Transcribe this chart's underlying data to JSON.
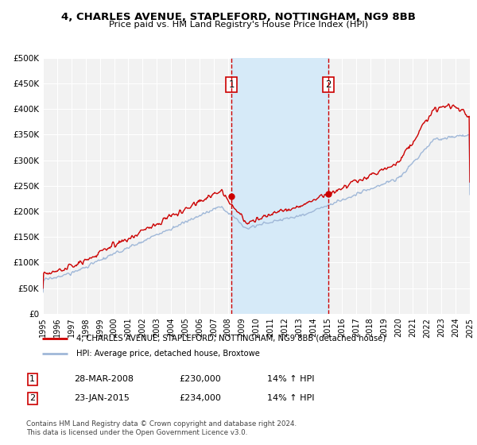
{
  "title_line1": "4, CHARLES AVENUE, STAPLEFORD, NOTTINGHAM, NG9 8BB",
  "title_line2": "Price paid vs. HM Land Registry's House Price Index (HPI)",
  "background_color": "#ffffff",
  "plot_background_color": "#f2f2f2",
  "grid_color": "#ffffff",
  "hpi_color": "#a0b8d8",
  "price_color": "#cc0000",
  "highlight_fill": "#d6eaf8",
  "marker_color": "#cc0000",
  "vline_color": "#cc0000",
  "ylim": [
    0,
    500000
  ],
  "yticks": [
    0,
    50000,
    100000,
    150000,
    200000,
    250000,
    300000,
    350000,
    400000,
    450000,
    500000
  ],
  "ytick_labels": [
    "£0",
    "£50K",
    "£100K",
    "£150K",
    "£200K",
    "£250K",
    "£300K",
    "£350K",
    "£400K",
    "£450K",
    "£500K"
  ],
  "xmin_year": 1995,
  "xmax_year": 2025,
  "xticks_years": [
    1995,
    1996,
    1997,
    1998,
    1999,
    2000,
    2001,
    2002,
    2003,
    2004,
    2005,
    2006,
    2007,
    2008,
    2009,
    2010,
    2011,
    2012,
    2013,
    2014,
    2015,
    2016,
    2017,
    2018,
    2019,
    2020,
    2021,
    2022,
    2023,
    2024,
    2025
  ],
  "ev1_year_float": 2008.24,
  "ev2_year_float": 2015.06,
  "ev1_price": 230000,
  "ev2_price": 234000,
  "legend_line1": "4, CHARLES AVENUE, STAPLEFORD, NOTTINGHAM, NG9 8BB (detached house)",
  "legend_line2": "HPI: Average price, detached house, Broxtowe",
  "footer_line1": "Contains HM Land Registry data © Crown copyright and database right 2024.",
  "footer_line2": "This data is licensed under the Open Government Licence v3.0.",
  "note1_label": "1",
  "note1_date": "28-MAR-2008",
  "note1_price": "£230,000",
  "note1_hpi": "14% ↑ HPI",
  "note2_label": "2",
  "note2_date": "23-JAN-2015",
  "note2_price": "£234,000",
  "note2_hpi": "14% ↑ HPI"
}
